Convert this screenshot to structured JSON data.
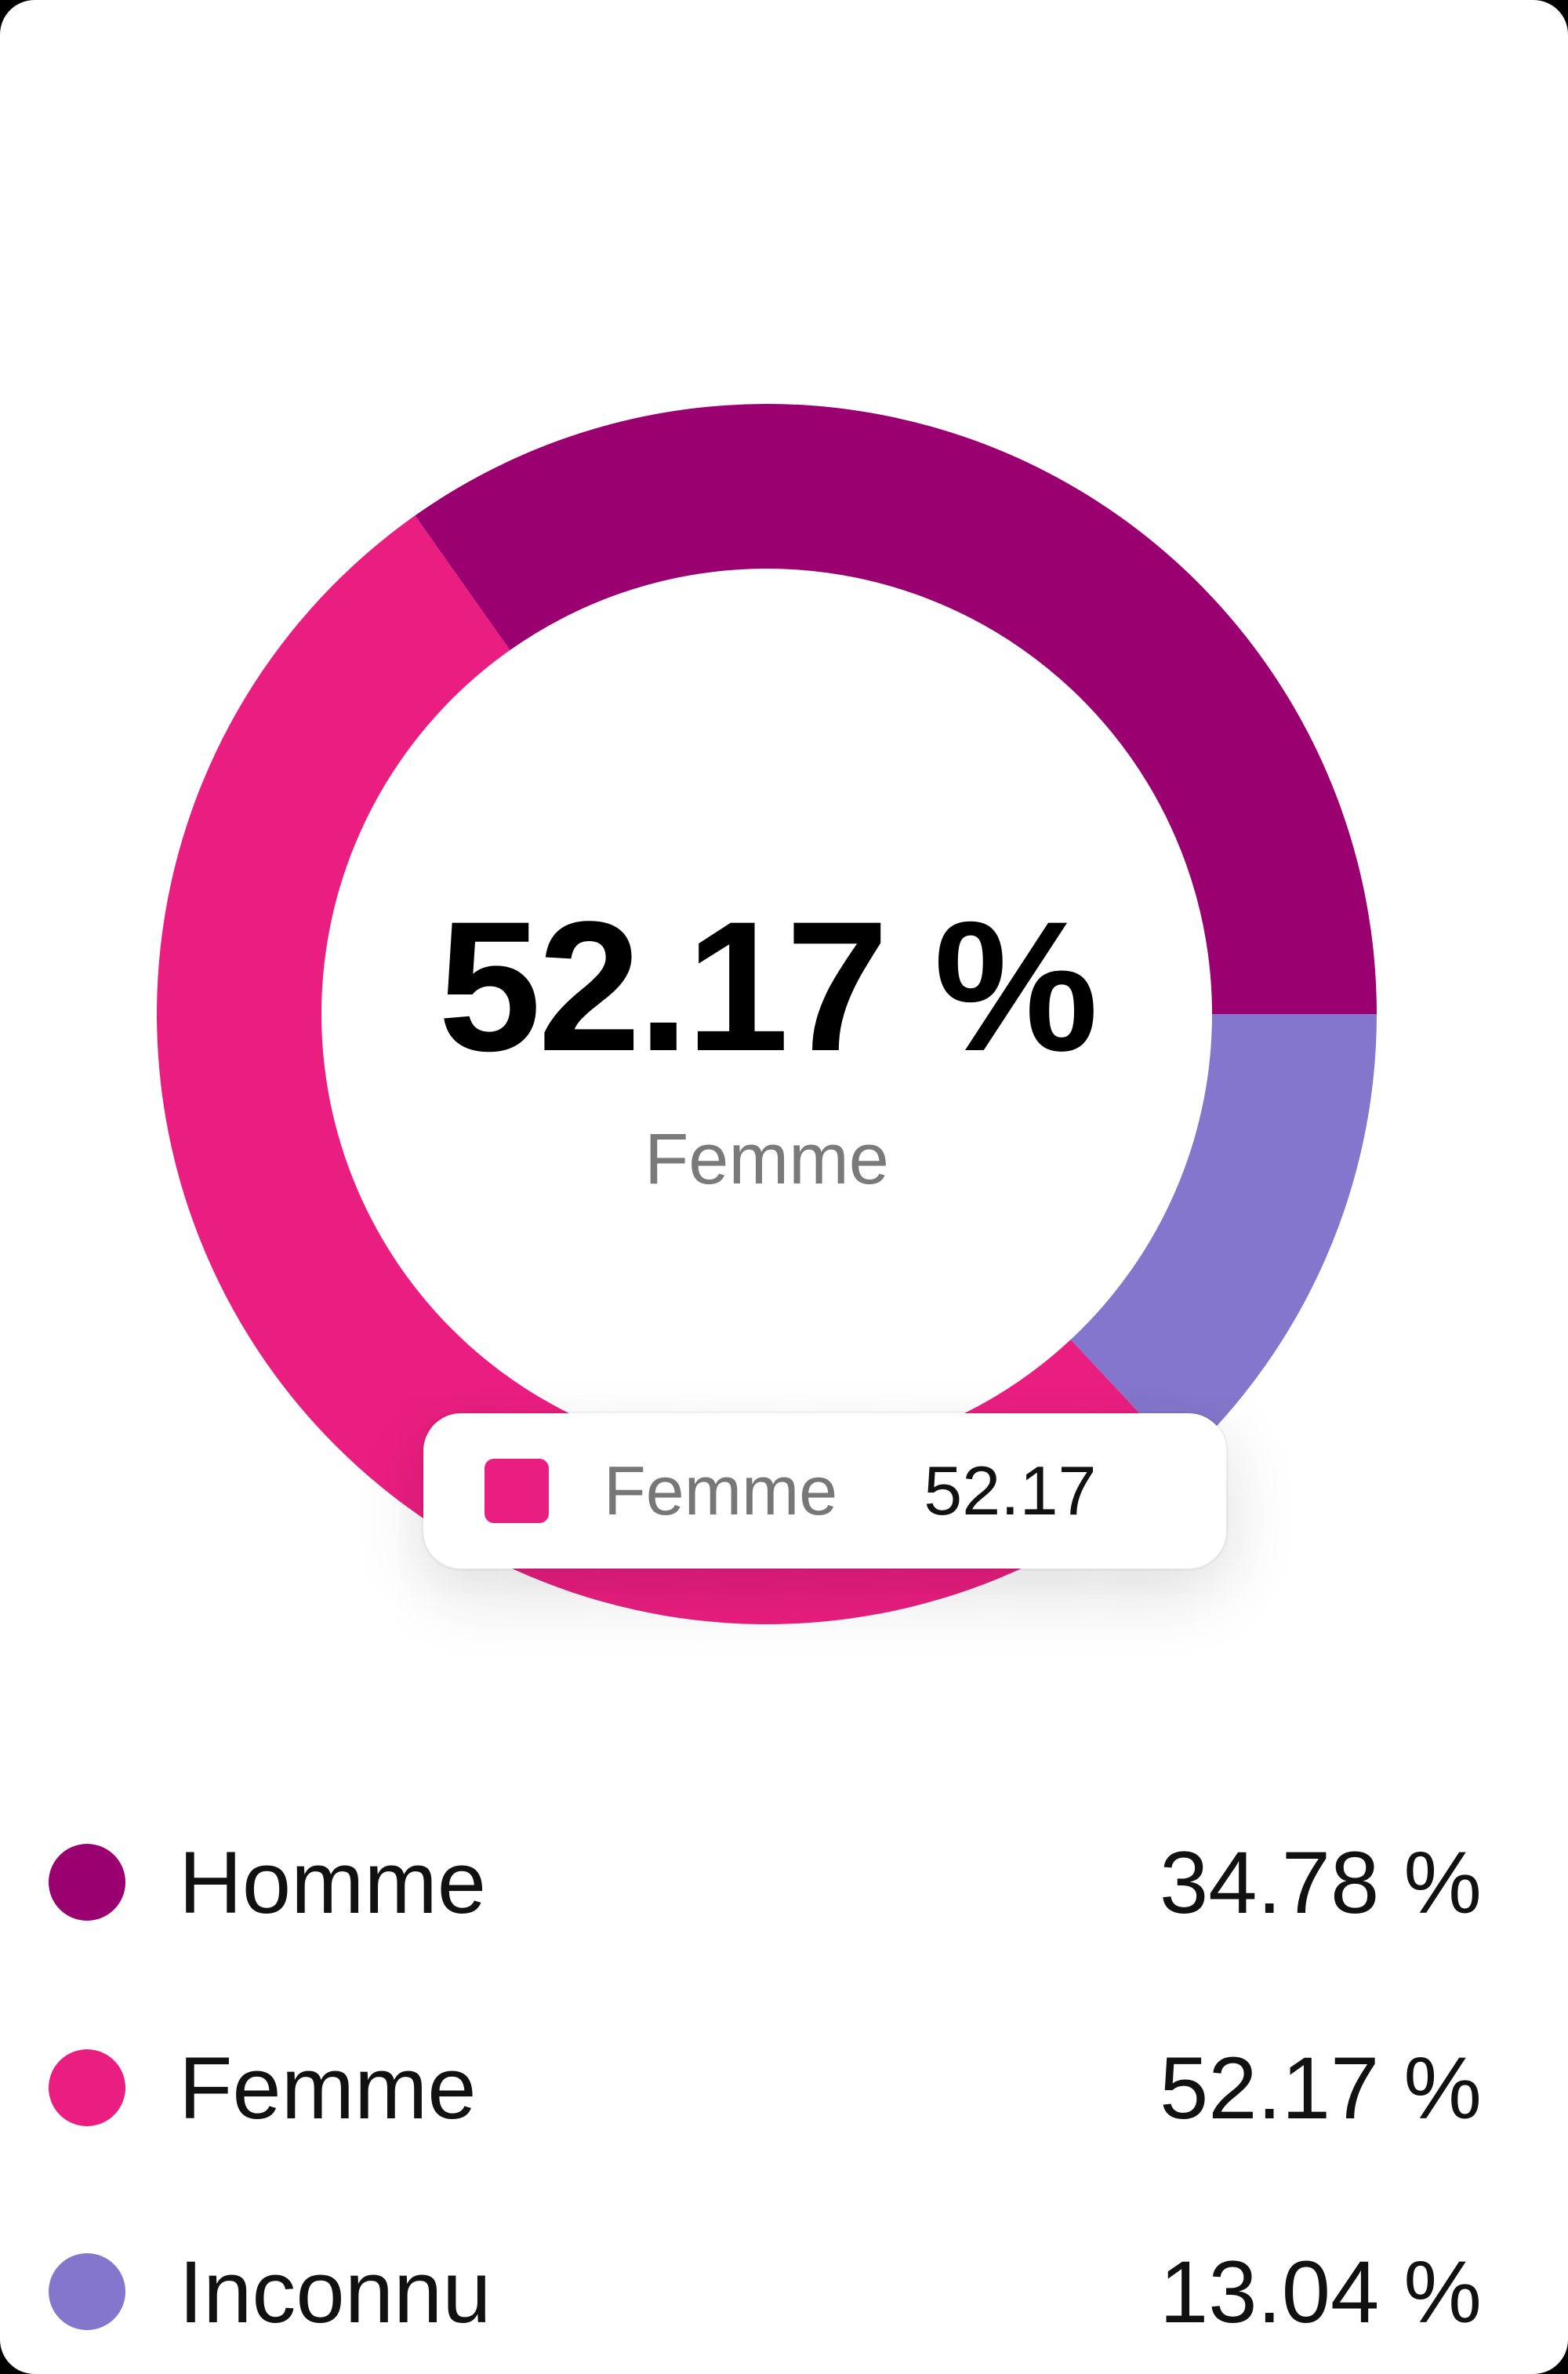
{
  "chart_data": {
    "type": "pie",
    "variant": "donut",
    "title": "",
    "categories": [
      "Homme",
      "Femme",
      "Inconnu"
    ],
    "values": [
      34.78,
      52.17,
      13.04
    ],
    "unit": "%",
    "colors": [
      "#9b0070",
      "#ea1e80",
      "#8476cc"
    ],
    "highlighted": "Femme",
    "center_text": {
      "value": "52.17 %",
      "label": "Femme"
    },
    "tooltip": {
      "label": "Femme",
      "value": "52.17"
    },
    "legend_position": "bottom"
  },
  "center": {
    "value": "52.17 %",
    "label": "Femme"
  },
  "tooltip": {
    "label": "Femme",
    "value": "52.17",
    "color": "#ea1e80"
  },
  "legend": [
    {
      "label": "Homme",
      "value": "34.78 %",
      "color": "#9b0070"
    },
    {
      "label": "Femme",
      "value": "52.17 %",
      "color": "#ea1e80"
    },
    {
      "label": "Inconnu",
      "value": "13.04 %",
      "color": "#8476cc"
    }
  ]
}
